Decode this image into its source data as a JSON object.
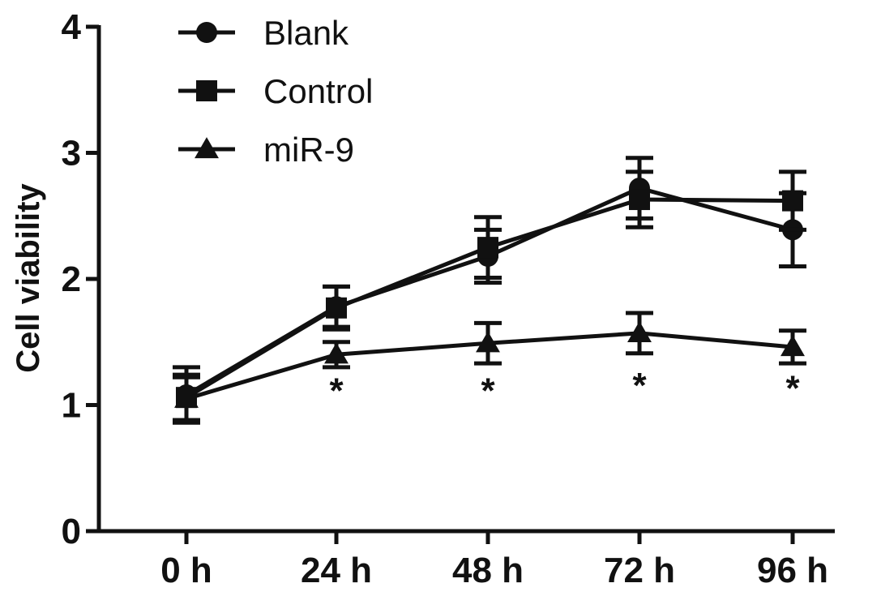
{
  "chart_data": {
    "type": "line",
    "xlabel": "",
    "ylabel": "Cell viability",
    "ylim": [
      0,
      4
    ],
    "yticks": [
      0,
      1,
      2,
      3,
      4
    ],
    "categories": [
      "0 h",
      "24 h",
      "48 h",
      "72 h",
      "96 h"
    ],
    "grid": false,
    "legend_position": "top-left",
    "series": [
      {
        "name": "Blank",
        "marker": "circle",
        "values": [
          1.08,
          1.78,
          2.18,
          2.72,
          2.39
        ],
        "errors": [
          0.22,
          0.16,
          0.21,
          0.24,
          0.29
        ]
      },
      {
        "name": "Control",
        "marker": "square",
        "values": [
          1.06,
          1.77,
          2.25,
          2.63,
          2.62
        ],
        "errors": [
          0.18,
          0.17,
          0.24,
          0.22,
          0.23
        ]
      },
      {
        "name": "miR-9",
        "marker": "triangle",
        "values": [
          1.05,
          1.4,
          1.49,
          1.57,
          1.46
        ],
        "errors": [
          0.17,
          0.1,
          0.16,
          0.16,
          0.13
        ]
      }
    ],
    "annotations": [
      {
        "category": "24 h",
        "text": "*",
        "y": 1.11
      },
      {
        "category": "48 h",
        "text": "*",
        "y": 1.11
      },
      {
        "category": "72 h",
        "text": "*",
        "y": 1.15
      },
      {
        "category": "96 h",
        "text": "*",
        "y": 1.13
      }
    ],
    "colors": {
      "ink": "#111111"
    }
  }
}
